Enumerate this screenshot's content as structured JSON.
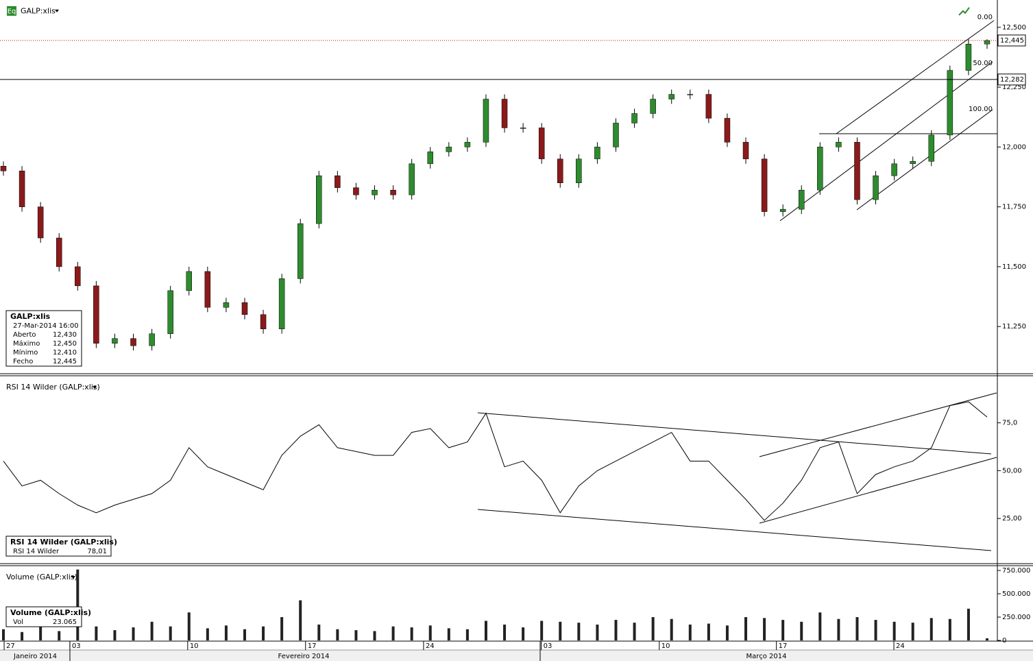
{
  "toolbar": {
    "icon": "Eq"
  },
  "chart_data": [
    {
      "type": "candlestick",
      "title": "GALP:xlis",
      "series": [
        {
          "name": "GALP:xlis",
          "up_color": "#2e8b2e",
          "down_color": "#8b1a1a",
          "open": [
            11.92,
            11.9,
            11.75,
            11.62,
            11.5,
            11.42,
            11.18,
            11.2,
            11.17,
            11.22,
            11.4,
            11.48,
            11.33,
            11.35,
            11.3,
            11.24,
            11.45,
            11.68,
            11.88,
            11.83,
            11.8,
            11.82,
            11.8,
            11.93,
            11.98,
            12.0,
            12.02,
            12.2,
            12.08,
            12.08,
            11.95,
            11.85,
            11.95,
            12.0,
            12.1,
            12.14,
            12.2,
            12.22,
            12.22,
            12.12,
            12.02,
            11.95,
            11.73,
            11.74,
            11.82,
            12.0,
            12.02,
            11.78,
            11.88,
            11.93,
            11.94,
            12.05,
            12.32,
            12.43
          ],
          "high": [
            11.94,
            11.92,
            11.77,
            11.64,
            11.52,
            11.44,
            11.22,
            11.22,
            11.24,
            11.42,
            11.5,
            11.5,
            11.37,
            11.37,
            11.32,
            11.47,
            11.7,
            11.9,
            11.9,
            11.85,
            11.84,
            11.84,
            11.95,
            12.0,
            12.02,
            12.04,
            12.22,
            12.22,
            12.1,
            12.1,
            11.97,
            11.97,
            12.02,
            12.12,
            12.16,
            12.22,
            12.24,
            12.24,
            12.24,
            12.14,
            12.04,
            11.97,
            11.76,
            11.84,
            12.02,
            12.04,
            12.04,
            11.9,
            11.95,
            11.96,
            12.07,
            12.34,
            12.45,
            12.45
          ],
          "low": [
            11.88,
            11.73,
            11.6,
            11.48,
            11.4,
            11.16,
            11.16,
            11.15,
            11.15,
            11.2,
            11.38,
            11.31,
            11.31,
            11.28,
            11.22,
            11.22,
            11.43,
            11.66,
            11.81,
            11.78,
            11.78,
            11.78,
            11.78,
            11.91,
            11.96,
            11.98,
            12.0,
            12.06,
            12.06,
            11.93,
            11.83,
            11.83,
            11.93,
            11.98,
            12.08,
            12.12,
            12.18,
            12.2,
            12.1,
            12.0,
            11.93,
            11.71,
            11.71,
            11.72,
            11.8,
            11.98,
            11.76,
            11.76,
            11.86,
            11.91,
            11.92,
            12.03,
            12.3,
            12.41
          ],
          "close": [
            11.9,
            11.75,
            11.62,
            11.5,
            11.42,
            11.18,
            11.2,
            11.17,
            11.22,
            11.4,
            11.48,
            11.33,
            11.35,
            11.3,
            11.24,
            11.45,
            11.68,
            11.88,
            11.83,
            11.8,
            11.82,
            11.8,
            11.93,
            11.98,
            12.0,
            12.02,
            12.2,
            12.08,
            12.08,
            11.95,
            11.85,
            11.95,
            12.0,
            12.1,
            12.14,
            12.2,
            12.22,
            12.22,
            12.12,
            12.02,
            11.95,
            11.73,
            11.74,
            11.82,
            12.0,
            12.02,
            11.78,
            11.88,
            11.93,
            11.94,
            12.05,
            12.32,
            12.43,
            12.445
          ]
        }
      ],
      "ylim": [
        11.053,
        12.614
      ],
      "yticks": [
        {
          "value": 12.5,
          "label": "12,500"
        },
        {
          "value": 12.25,
          "label": "12,250"
        },
        {
          "value": 12.0,
          "label": "12,000"
        },
        {
          "value": 11.75,
          "label": "11,750"
        },
        {
          "value": 11.5,
          "label": "11,500"
        },
        {
          "value": 11.25,
          "label": "11,250"
        }
      ],
      "price_markers": [
        {
          "value": 12.445,
          "label": "12,445",
          "color": "#c00000"
        },
        {
          "value": 12.282,
          "label": "12,282",
          "color": "#000000"
        }
      ],
      "fib_labels": [
        "0.00",
        "50.00",
        "100.00"
      ],
      "info_box": {
        "title": "GALP:xlis",
        "date": "27-Mar-2014 16:00",
        "rows": [
          [
            "Aberto",
            "12,430"
          ],
          [
            "Máximo",
            "12,450"
          ],
          [
            "Mínimo",
            "12,410"
          ],
          [
            "Fecho",
            "12,445"
          ]
        ]
      }
    },
    {
      "type": "line",
      "title": "RSI 14 Wilder (GALP:xlis)",
      "series": [
        {
          "name": "RSI 14 Wilder",
          "color": "#000000",
          "values": [
            55,
            42,
            45,
            38,
            32,
            28,
            32,
            35,
            38,
            45,
            62,
            52,
            48,
            44,
            40,
            58,
            68,
            74,
            62,
            60,
            58,
            58,
            70,
            72,
            62,
            65,
            80,
            52,
            55,
            45,
            28,
            42,
            50,
            55,
            60,
            65,
            70,
            55,
            55,
            45,
            35,
            24,
            33,
            45,
            62,
            65,
            38,
            48,
            52,
            55,
            62,
            84,
            86,
            78.01
          ]
        }
      ],
      "ylim": [
        1.4,
        99.6
      ],
      "yticks": [
        {
          "value": 75,
          "label": "75,0"
        },
        {
          "value": 50,
          "label": "50,00"
        },
        {
          "value": 25,
          "label": "25,00"
        }
      ],
      "info_box": {
        "title": "RSI 14 Wilder (GALP:xlis)",
        "rows": [
          [
            "RSI 14 Wilder",
            "78,01"
          ]
        ]
      }
    },
    {
      "type": "bar",
      "title": "Volume (GALP:xlis)",
      "series": [
        {
          "name": "Vol",
          "color": "#222222",
          "values": [
            120000,
            90000,
            180000,
            100000,
            760000,
            150000,
            110000,
            140000,
            200000,
            150000,
            300000,
            130000,
            160000,
            120000,
            150000,
            250000,
            430000,
            170000,
            120000,
            110000,
            100000,
            150000,
            140000,
            160000,
            130000,
            120000,
            210000,
            170000,
            140000,
            210000,
            200000,
            190000,
            170000,
            220000,
            190000,
            250000,
            230000,
            170000,
            180000,
            160000,
            250000,
            240000,
            220000,
            200000,
            300000,
            230000,
            250000,
            220000,
            200000,
            190000,
            240000,
            230000,
            340000,
            23065
          ]
        }
      ],
      "ylim": [
        0,
        793700
      ],
      "yticks": [
        {
          "value": 750000,
          "label": "750.000"
        },
        {
          "value": 500000,
          "label": "500.000"
        },
        {
          "value": 250000,
          "label": "250.000"
        },
        0
      ],
      "info_box": {
        "title": "Volume (GALP:xlis)",
        "rows": [
          [
            "Vol",
            "23.065"
          ]
        ]
      },
      "xlim": [
        0,
        53
      ],
      "xticks": [
        {
          "value": 0.26,
          "label": "27"
        },
        {
          "value": 3.8,
          "label": "03"
        },
        {
          "value": 10.15,
          "label": "10"
        },
        {
          "value": 16.5,
          "label": "17"
        },
        {
          "value": 22.86,
          "label": "24"
        },
        {
          "value": 29.2,
          "label": "03"
        },
        {
          "value": 35.56,
          "label": "10"
        },
        {
          "value": 41.87,
          "label": "17"
        },
        {
          "value": 48.2,
          "label": "24"
        }
      ],
      "month_labels": [
        "Janeiro 2014",
        "Fevereiro 2014",
        "Março 2014"
      ]
    }
  ]
}
